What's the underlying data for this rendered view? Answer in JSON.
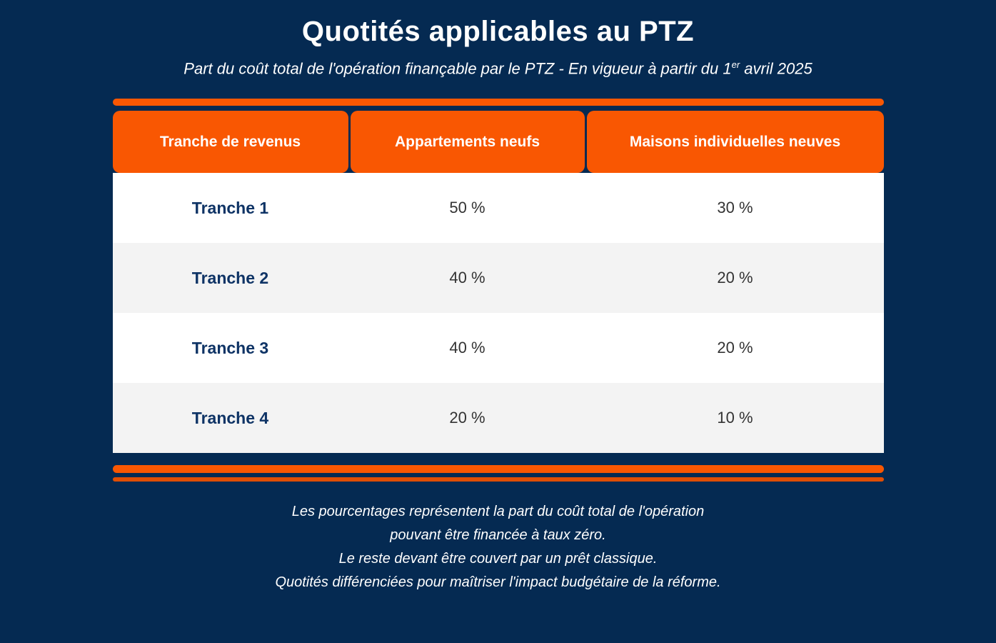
{
  "header": {
    "title": "Quotités applicables au PTZ",
    "subtitle": {
      "part1": "Part du coût total de l'opération finançable par le PTZ - En vigueur à partir du 1",
      "sup": "er",
      "part2": " avril 2025"
    }
  },
  "table": {
    "columns": [
      "Tranche de revenus",
      "Appartements neufs",
      "Maisons individuelles neuves"
    ],
    "rows": [
      {
        "label": "Tranche 1",
        "appartements": "50 %",
        "maisons": "30 %"
      },
      {
        "label": "Tranche 2",
        "appartements": "40 %",
        "maisons": "20 %"
      },
      {
        "label": "Tranche 3",
        "appartements": "40 %",
        "maisons": "20 %"
      },
      {
        "label": "Tranche 4",
        "appartements": "20 %",
        "maisons": "10 %"
      }
    ]
  },
  "footer": {
    "lines": [
      "Les pourcentages représentent la part du coût total de l'opération",
      "pouvant être financée à taux zéro.",
      "Le reste devant être couvert par un prêt classique.",
      "Quotités différenciées pour maîtriser l'impact budgétaire de la réforme."
    ]
  },
  "colors": {
    "background_navy": "#052a52",
    "accent_orange": "#f95702",
    "accent_orange_dark": "#e04e05",
    "row_white": "#ffffff",
    "row_gray": "#f3f3f3",
    "label_navy": "#0e3365",
    "value_gray": "#333333"
  },
  "chart_data": {
    "type": "table",
    "title": "Quotités applicables au PTZ",
    "subtitle": "Part du coût total de l'opération finançable par le PTZ - En vigueur à partir du 1er avril 2025",
    "columns": [
      "Tranche de revenus",
      "Appartements neufs",
      "Maisons individuelles neuves"
    ],
    "rows": [
      [
        "Tranche 1",
        "50 %",
        "30 %"
      ],
      [
        "Tranche 2",
        "40 %",
        "20 %"
      ],
      [
        "Tranche 3",
        "40 %",
        "20 %"
      ],
      [
        "Tranche 4",
        "20 %",
        "10 %"
      ]
    ],
    "values_percent": {
      "appartements_neufs": [
        50,
        40,
        40,
        20
      ],
      "maisons_individuelles_neuves": [
        30,
        20,
        20,
        10
      ]
    },
    "notes": [
      "Les pourcentages représentent la part du coût total de l'opération pouvant être financée à taux zéro.",
      "Le reste devant être couvert par un prêt classique.",
      "Quotités différenciées pour maîtriser l'impact budgétaire de la réforme."
    ]
  }
}
